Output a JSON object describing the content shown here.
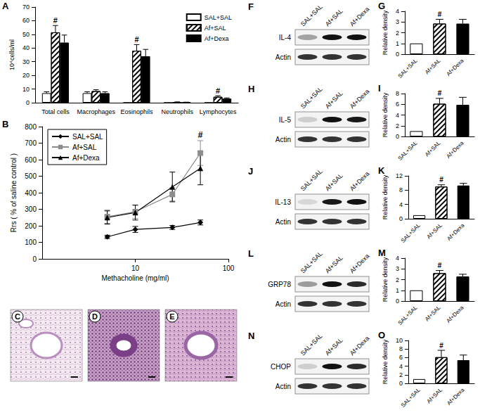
{
  "chart_data": [
    {
      "panel": "A",
      "type": "bar",
      "ylabel": "10⁴cells/ml",
      "categories": [
        "Total cells",
        "Macrophages",
        "Eosinophils",
        "Neutrophils",
        "Lymphocytes"
      ],
      "ylim": [
        0,
        70
      ],
      "yticks": [
        0,
        10,
        20,
        30,
        40,
        50,
        60,
        70
      ],
      "legend": "top-right",
      "series": [
        {
          "name": "SAL+SAL",
          "color": "#ffffff",
          "values": [
            7,
            7,
            0,
            0,
            0
          ],
          "errors": [
            1,
            1,
            0,
            0,
            0
          ]
        },
        {
          "name": "Af+SAL",
          "color": "#ffffff",
          "values": [
            51.5,
            8.5,
            38,
            0.5,
            4.3
          ],
          "errors": [
            5,
            1,
            4.5,
            0.1,
            0.8
          ]
        },
        {
          "name": "Af+Dexa",
          "color": "#000000",
          "values": [
            44,
            7,
            34,
            0.3,
            3
          ],
          "errors": [
            5.5,
            1,
            5,
            0.1,
            0.5
          ]
        }
      ],
      "annotations": [
        {
          "category": "Total cells",
          "series": "Af+SAL",
          "text": "#"
        },
        {
          "category": "Eosinophils",
          "series": "Af+SAL",
          "text": "#"
        },
        {
          "category": "Lymphocytes",
          "series": "Af+SAL",
          "text": "#"
        }
      ]
    },
    {
      "panel": "B",
      "type": "line",
      "xlabel": "Methacholine (mg/ml)",
      "ylabel": "Rrs ( % of saline control )",
      "log": "x",
      "xlim": [
        1,
        100
      ],
      "xticks": [
        10,
        100
      ],
      "ylim": [
        0,
        800
      ],
      "yticks": [
        0,
        100,
        200,
        300,
        400,
        500,
        600,
        700,
        800
      ],
      "legend": "top-left",
      "x": [
        5,
        10,
        25,
        50
      ],
      "series": [
        {
          "name": "SAL+SAL",
          "color": "#000000",
          "marker": "diamond",
          "line_style": "solid",
          "values": [
            133,
            178,
            190,
            220
          ],
          "errors": [
            10,
            18,
            12,
            15
          ]
        },
        {
          "name": "Af+SAL",
          "color": "#8c8c8c",
          "marker": "rect",
          "line_style": "solid",
          "values": [
            255,
            285,
            390,
            640
          ],
          "errors": [
            40,
            40,
            40,
            75
          ]
        },
        {
          "name": "Af+Dexa",
          "color": "#000000",
          "marker": "triangle",
          "line_style": "solid",
          "values": [
            250,
            280,
            435,
            548
          ],
          "errors": [
            40,
            45,
            90,
            100
          ]
        }
      ],
      "annotations": [
        {
          "x": 50,
          "series": "Af+SAL",
          "text": "#"
        }
      ]
    },
    {
      "panel": "C",
      "type": "image"
    },
    {
      "panel": "D",
      "type": "image"
    },
    {
      "panel": "E",
      "type": "image"
    },
    {
      "panel": "F",
      "type": "blot",
      "lanes": [
        "SAL+SAL",
        "Af+SAL",
        "Af+Dexa"
      ],
      "bands": [
        "IL-4",
        "Actin"
      ]
    },
    {
      "panel": "G",
      "type": "bar",
      "ylabel": "Relative density",
      "categories": [
        "SAL+SAL",
        "Af+SAL",
        "Af+Dexa"
      ],
      "values": [
        1,
        2.85,
        2.85
      ],
      "errors": [
        0,
        0.4,
        0.4
      ],
      "colors": [
        "#ffffff",
        "#ffffff",
        "#000000"
      ],
      "ylim": [
        0,
        4
      ],
      "yticks": [
        0,
        1,
        2,
        3,
        4
      ],
      "annotations": [
        {
          "category": "Af+SAL",
          "text": "#"
        }
      ]
    },
    {
      "panel": "H",
      "type": "blot",
      "lanes": [
        "SAL+SAL",
        "Af+SAL",
        "Af+Dexa"
      ],
      "bands": [
        "IL-5",
        "Actin"
      ]
    },
    {
      "panel": "I",
      "type": "bar",
      "ylabel": "Relative density",
      "categories": [
        "SAL+SAL",
        "Af+SAL",
        "Af+Dexa"
      ],
      "values": [
        1,
        6.1,
        5.9
      ],
      "errors": [
        0,
        1.0,
        1.4
      ],
      "colors": [
        "#ffffff",
        "#ffffff",
        "#000000"
      ],
      "ylim": [
        0,
        8
      ],
      "yticks": [
        0,
        2,
        4,
        6,
        8
      ],
      "annotations": [
        {
          "category": "Af+SAL",
          "text": "#"
        }
      ]
    },
    {
      "panel": "J",
      "type": "blot",
      "lanes": [
        "SAL+SAL",
        "Af+SAL",
        "Af+Dexa"
      ],
      "bands": [
        "IL-13",
        "Actin"
      ]
    },
    {
      "panel": "K",
      "type": "bar",
      "ylabel": "Relative density",
      "categories": [
        "SAL+SAL",
        "Af+SAL",
        "Af+Dexa"
      ],
      "values": [
        1,
        9.0,
        9.3
      ],
      "errors": [
        0,
        0.5,
        0.6
      ],
      "colors": [
        "#ffffff",
        "#ffffff",
        "#000000"
      ],
      "ylim": [
        0,
        12
      ],
      "yticks": [
        0,
        4,
        8,
        12
      ],
      "annotations": [
        {
          "category": "Af+SAL",
          "text": "#"
        }
      ]
    },
    {
      "panel": "L",
      "type": "blot",
      "lanes": [
        "SAL+SAL",
        "Af+SAL",
        "Af+Dexa"
      ],
      "bands": [
        "GRP78",
        "Actin"
      ]
    },
    {
      "panel": "M",
      "type": "bar",
      "ylabel": "Relative density",
      "categories": [
        "SAL+SAL",
        "Af+SAL",
        "Af+Dexa"
      ],
      "values": [
        1,
        2.6,
        2.3
      ],
      "errors": [
        0,
        0.25,
        0.2
      ],
      "colors": [
        "#ffffff",
        "#ffffff",
        "#000000"
      ],
      "ylim": [
        0,
        4
      ],
      "yticks": [
        0,
        1,
        2,
        3,
        4
      ],
      "annotations": [
        {
          "category": "Af+SAL",
          "text": "#"
        }
      ]
    },
    {
      "panel": "N",
      "type": "blot",
      "lanes": [
        "SAL+SAL",
        "Af+SAL",
        "Af+Dexa"
      ],
      "bands": [
        "CHOP",
        "Actin"
      ]
    },
    {
      "panel": "O",
      "type": "bar",
      "ylabel": "Relative density",
      "categories": [
        "SAL+SAL",
        "Af+SAL",
        "Af+Dexa"
      ],
      "values": [
        1,
        6.1,
        5.4
      ],
      "errors": [
        0,
        1.6,
        1.2
      ],
      "colors": [
        "#ffffff",
        "#ffffff",
        "#000000"
      ],
      "ylim": [
        0,
        10
      ],
      "yticks": [
        0,
        2,
        4,
        6,
        8,
        10
      ],
      "annotations": [
        {
          "category": "Af+SAL",
          "text": "#"
        }
      ]
    }
  ]
}
